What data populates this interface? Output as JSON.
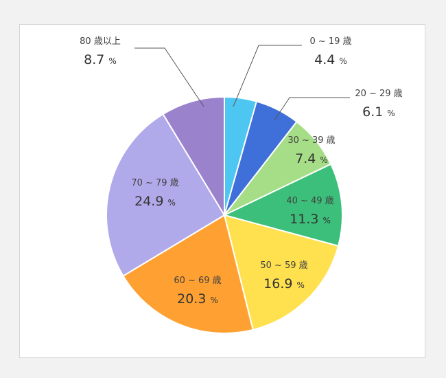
{
  "chart_data": {
    "type": "pie",
    "title": "",
    "percent_symbol": "%",
    "slices": [
      {
        "label": "0 ~ 19 歳",
        "value": 4.4,
        "value_text": "4.4",
        "color": "#4ec6f2"
      },
      {
        "label": "20 ~ 29 歳",
        "value": 6.1,
        "value_text": "6.1",
        "color": "#3f6fd8"
      },
      {
        "label": "30 ~ 39 歳",
        "value": 7.4,
        "value_text": "7.4",
        "color": "#a6de87"
      },
      {
        "label": "40 ~ 49 歳",
        "value": 11.3,
        "value_text": "11.3",
        "color": "#3cbf7a"
      },
      {
        "label": "50 ~ 59 歳",
        "value": 16.9,
        "value_text": "16.9",
        "color": "#ffe14f"
      },
      {
        "label": "60 ~ 69 歳",
        "value": 20.3,
        "value_text": "20.3",
        "color": "#ffa132"
      },
      {
        "label": "70 ~ 79 歳",
        "value": 24.9,
        "value_text": "24.9",
        "color": "#b1aaea"
      },
      {
        "label": "80 歳以上",
        "value": 8.7,
        "value_text": "8.7",
        "color": "#9b82cd"
      }
    ]
  }
}
